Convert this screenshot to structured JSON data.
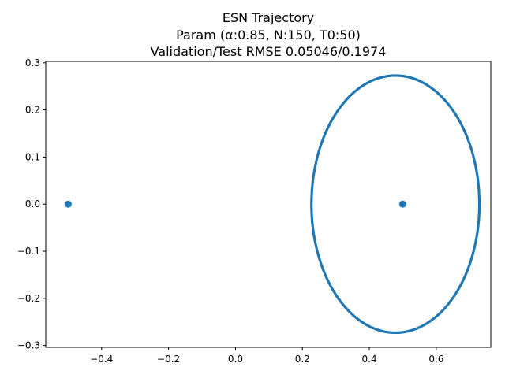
{
  "chart_data": {
    "type": "scatter",
    "title_lines": [
      "ESN Trajectory",
      "Param (α:0.85, N:150, T0:50)",
      "Validation/Test RMSE 0.05046/0.1974"
    ],
    "xlabel": "",
    "ylabel": "",
    "xlim": [
      -0.567,
      0.763
    ],
    "ylim": [
      -0.304,
      0.303
    ],
    "x_ticks": [
      -0.4,
      -0.2,
      0.0,
      0.2,
      0.4,
      0.6
    ],
    "x_tick_labels": [
      "−0.4",
      "−0.2",
      "0.0",
      "0.2",
      "0.4",
      "0.6"
    ],
    "y_ticks": [
      -0.3,
      -0.2,
      -0.1,
      0.0,
      0.1,
      0.2,
      0.3
    ],
    "y_tick_labels": [
      "−0.3",
      "−0.2",
      "−0.1",
      "0.0",
      "0.1",
      "0.2",
      "0.3"
    ],
    "grid": false,
    "color": "#1f77b4",
    "series": [
      {
        "kind": "points",
        "points": [
          {
            "x": -0.5,
            "y": 0.0
          },
          {
            "x": 0.5,
            "y": 0.0
          }
        ]
      },
      {
        "kind": "ellipse-trajectory",
        "center": {
          "x": 0.478,
          "y": 0.0
        },
        "radius_x": 0.251,
        "radius_y": 0.273
      }
    ]
  }
}
